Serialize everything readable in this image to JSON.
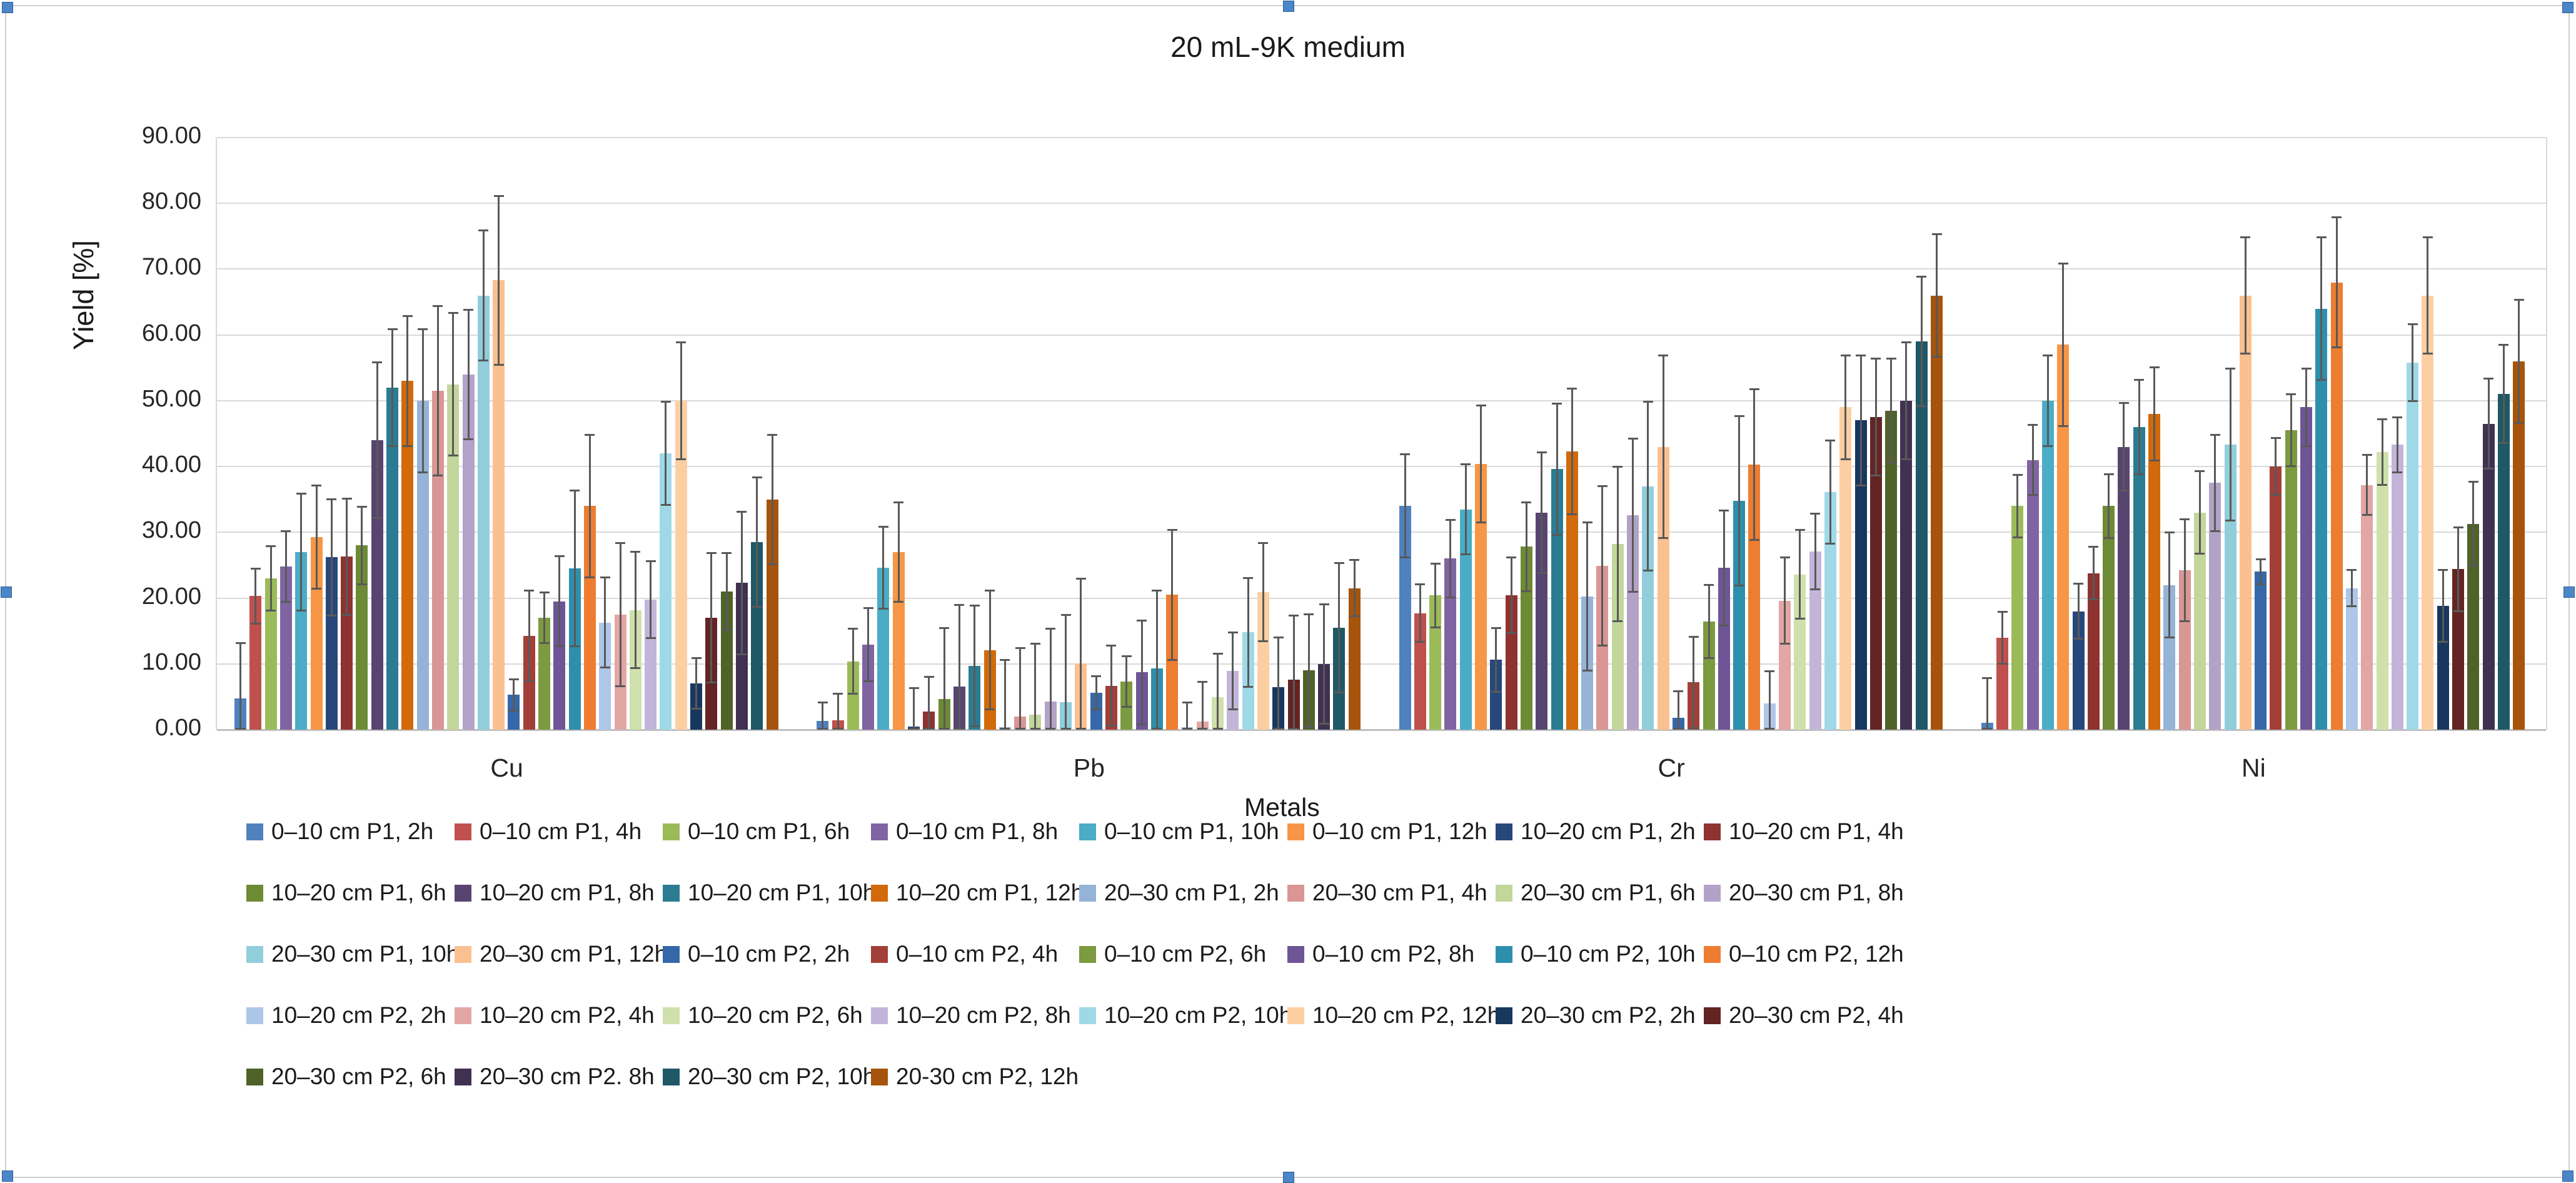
{
  "chart_data": {
    "type": "bar",
    "title": "20 mL-9K medium",
    "xlabel": "Metals",
    "ylabel": "Yield [%]",
    "categories": [
      "Cu",
      "Pb",
      "Cr",
      "Ni"
    ],
    "y_ticks": [
      "0.00",
      "10.00",
      "20.00",
      "30.00",
      "40.00",
      "50.00",
      "60.00",
      "70.00",
      "80.00",
      "90.00"
    ],
    "ylim": [
      0,
      90
    ],
    "grid": true,
    "legend_position": "bottom",
    "error_bar_color": "#595959",
    "series": [
      {
        "name": "0–10 cm P1, 2h",
        "color": "#4F81BD",
        "values": [
          4.8,
          1.3,
          34.0,
          1.0
        ],
        "errors": [
          8.5,
          3.0,
          8.0,
          7.0
        ]
      },
      {
        "name": "0–10 cm P1, 4h",
        "color": "#C0504D",
        "values": [
          20.3,
          1.4,
          17.7,
          14.0
        ],
        "errors": [
          4.3,
          4.2,
          4.5,
          4.1
        ]
      },
      {
        "name": "0–10 cm P1, 6h",
        "color": "#9BBB59",
        "values": [
          23.0,
          10.4,
          20.4,
          34.0
        ],
        "errors": [
          5.0,
          5.1,
          5.0,
          4.9
        ]
      },
      {
        "name": "0–10 cm P1, 8h",
        "color": "#8064A2",
        "values": [
          24.8,
          12.9,
          26.0,
          41.0
        ],
        "errors": [
          5.5,
          5.7,
          6.0,
          5.5
        ]
      },
      {
        "name": "0–10 cm P1, 10h",
        "color": "#4BACC6",
        "values": [
          27.0,
          24.6,
          33.5,
          50.0
        ],
        "errors": [
          9.0,
          6.4,
          7.0,
          7.0
        ]
      },
      {
        "name": "0–10 cm P1, 12h",
        "color": "#F79646",
        "values": [
          29.3,
          27.0,
          40.4,
          58.5
        ],
        "errors": [
          8.0,
          7.7,
          9.0,
          12.5
        ]
      },
      {
        "name": "10–20 cm P1, 2h",
        "color": "#27477A",
        "values": [
          26.2,
          0.5,
          10.6,
          18.0
        ],
        "errors": [
          9.0,
          6.0,
          5.0,
          4.3
        ]
      },
      {
        "name": "10–20 cm P1, 4h",
        "color": "#8E3330",
        "values": [
          26.3,
          2.8,
          20.4,
          23.8
        ],
        "errors": [
          9.0,
          5.4,
          5.9,
          4.1
        ]
      },
      {
        "name": "10–20 cm P1, 6h",
        "color": "#6D8A35",
        "values": [
          28.0,
          4.7,
          27.8,
          34.0
        ],
        "errors": [
          6.0,
          10.9,
          6.9,
          5.0
        ]
      },
      {
        "name": "10–20 cm P1, 8h",
        "color": "#584470",
        "values": [
          44.0,
          6.6,
          33.0,
          43.0
        ],
        "errors": [
          12.0,
          12.5,
          9.3,
          6.8
        ]
      },
      {
        "name": "10–20 cm P1, 10h",
        "color": "#2B7C92",
        "values": [
          52.0,
          9.7,
          39.6,
          46.0
        ],
        "errors": [
          9.0,
          9.3,
          10.1,
          7.3
        ]
      },
      {
        "name": "10–20 cm P1, 12h",
        "color": "#D2690B",
        "values": [
          53.0,
          12.1,
          42.3,
          48.0
        ],
        "errors": [
          10.0,
          9.2,
          9.7,
          7.2
        ]
      },
      {
        "name": "20–30 cm P1, 2h",
        "color": "#95B3D7",
        "values": [
          50.0,
          0.4,
          20.2,
          22.0
        ],
        "errors": [
          11.0,
          10.3,
          11.4,
          8.1
        ]
      },
      {
        "name": "20–30 cm P1, 4h",
        "color": "#D99694",
        "values": [
          51.5,
          2.0,
          24.9,
          24.2
        ],
        "errors": [
          13.0,
          10.5,
          12.3,
          7.9
        ]
      },
      {
        "name": "20–30 cm P1, 6h",
        "color": "#C3D69B",
        "values": [
          52.5,
          2.3,
          28.2,
          33.0
        ],
        "errors": [
          11.0,
          10.9,
          11.9,
          6.4
        ]
      },
      {
        "name": "20–30 cm P1, 8h",
        "color": "#B3A2C7",
        "values": [
          54.0,
          4.3,
          32.6,
          37.5
        ],
        "errors": [
          10.0,
          11.2,
          11.8,
          7.5
        ]
      },
      {
        "name": "20–30 cm P1, 10h",
        "color": "#92CDDC",
        "values": [
          66.0,
          4.2,
          37.0,
          43.3
        ],
        "errors": [
          10.0,
          13.4,
          13.0,
          11.7
        ]
      },
      {
        "name": "20–30 cm P1, 12h",
        "color": "#FAC090",
        "values": [
          68.3,
          10.1,
          43.0,
          66.0
        ],
        "errors": [
          13.0,
          13.0,
          14.0,
          9.0
        ]
      },
      {
        "name": "0–10 cm P2, 2h",
        "color": "#3667A8",
        "values": [
          5.3,
          5.6,
          1.8,
          24.0
        ],
        "errors": [
          2.5,
          2.7,
          4.2,
          2.0
        ]
      },
      {
        "name": "0–10 cm P2, 4h",
        "color": "#A23F38",
        "values": [
          14.3,
          6.7,
          7.2,
          40.0
        ],
        "errors": [
          7.0,
          6.2,
          7.1,
          4.5
        ]
      },
      {
        "name": "0–10 cm P2, 6h",
        "color": "#7C9A3F",
        "values": [
          17.0,
          7.3,
          16.4,
          45.5
        ],
        "errors": [
          4.0,
          4.0,
          5.7,
          5.6
        ]
      },
      {
        "name": "0–10 cm P2, 8h",
        "color": "#6E5596",
        "values": [
          19.5,
          8.7,
          24.6,
          49.0
        ],
        "errors": [
          7.0,
          8.0,
          8.9,
          6.0
        ]
      },
      {
        "name": "0–10 cm P2, 10h",
        "color": "#2E8FAC",
        "values": [
          24.5,
          9.3,
          34.8,
          64.0
        ],
        "errors": [
          12.0,
          12.0,
          13.0,
          11.0
        ]
      },
      {
        "name": "0–10 cm P2, 12h",
        "color": "#ED7D31",
        "values": [
          34.0,
          20.5,
          40.3,
          68.0
        ],
        "errors": [
          11.0,
          10.0,
          11.6,
          10.0
        ]
      },
      {
        "name": "10–20 cm P2, 2h",
        "color": "#AEC6E8",
        "values": [
          16.3,
          0.4,
          4.0,
          21.5
        ],
        "errors": [
          7.0,
          3.9,
          5.0,
          2.9
        ]
      },
      {
        "name": "10–20 cm P2, 4h",
        "color": "#E2A6A4",
        "values": [
          17.5,
          1.2,
          19.6,
          37.2
        ],
        "errors": [
          11.0,
          6.2,
          6.7,
          4.7
        ]
      },
      {
        "name": "10–20 cm P2, 6h",
        "color": "#CFE0AC",
        "values": [
          18.2,
          4.9,
          23.6,
          42.2
        ],
        "errors": [
          9.0,
          6.8,
          6.9,
          5.1
        ]
      },
      {
        "name": "10–20 cm P2, 8h",
        "color": "#C3B5D9",
        "values": [
          19.8,
          8.9,
          27.1,
          43.3
        ],
        "errors": [
          6.0,
          6.0,
          5.9,
          4.3
        ]
      },
      {
        "name": "10–20 cm P2, 10h",
        "color": "#9FD9E8",
        "values": [
          42.0,
          14.8,
          36.1,
          55.8
        ],
        "errors": [
          8.0,
          8.4,
          8.0,
          6.0
        ]
      },
      {
        "name": "10–20 cm P2, 12h",
        "color": "#FCCFA3",
        "values": [
          50.0,
          20.9,
          49.0,
          66.0
        ],
        "errors": [
          9.0,
          7.6,
          8.0,
          9.0
        ]
      },
      {
        "name": "20–30 cm P2, 2h",
        "color": "#17375E",
        "values": [
          7.0,
          6.5,
          47.0,
          18.8
        ],
        "errors": [
          4.0,
          7.7,
          10.0,
          5.6
        ]
      },
      {
        "name": "20–30 cm P2, 4h",
        "color": "#632423",
        "values": [
          17.0,
          7.6,
          47.5,
          24.4
        ],
        "errors": [
          10.0,
          9.9,
          9.0,
          6.5
        ]
      },
      {
        "name": "20–30 cm P2, 6h",
        "color": "#4F6228",
        "values": [
          21.0,
          9.0,
          48.5,
          31.3
        ],
        "errors": [
          6.0,
          8.7,
          8.0,
          6.5
        ]
      },
      {
        "name": "20–30 cm P2. 8h",
        "color": "#403152",
        "values": [
          22.3,
          10.0,
          50.0,
          46.5
        ],
        "errors": [
          11.0,
          9.2,
          9.0,
          7.0
        ]
      },
      {
        "name": "20–30 cm P2, 10h",
        "color": "#1F5867",
        "values": [
          28.5,
          15.5,
          59.0,
          51.0
        ],
        "errors": [
          10.0,
          10.0,
          10.0,
          7.6
        ]
      },
      {
        "name": "20-30 cm P2, 12h",
        "color": "#A6540B",
        "values": [
          35.0,
          21.5,
          66.0,
          56.0
        ],
        "errors": [
          10.0,
          4.4,
          9.5,
          9.5
        ]
      }
    ]
  }
}
